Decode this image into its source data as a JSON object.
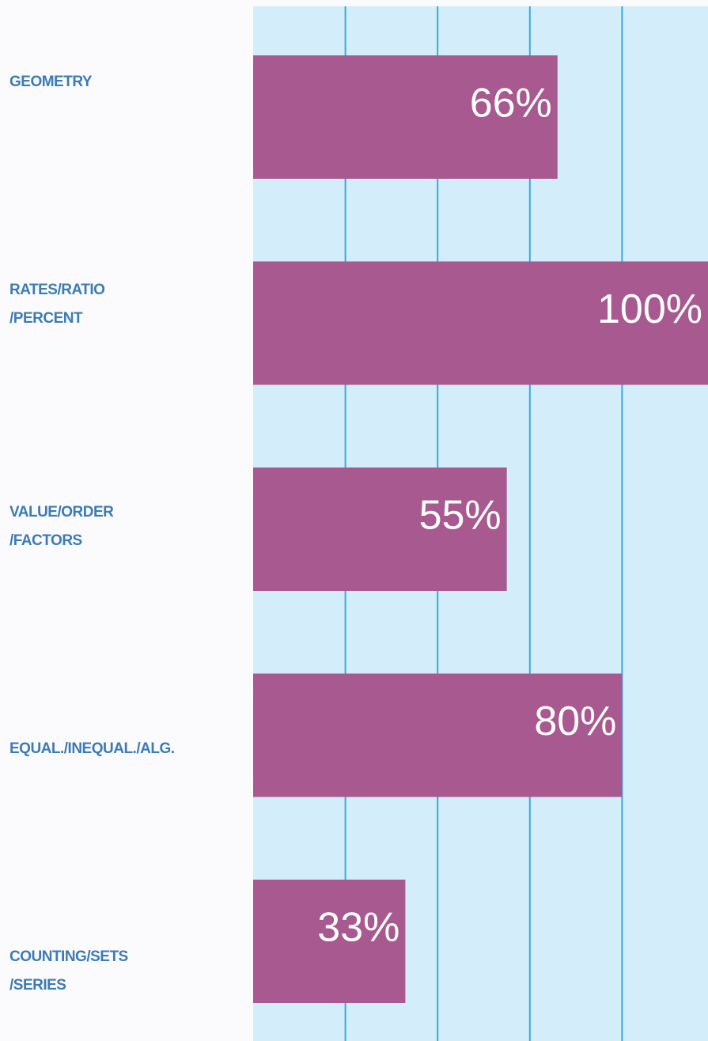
{
  "chart_data": {
    "type": "bar",
    "orientation": "horizontal",
    "categories": [
      [
        "GEOMETRY"
      ],
      [
        "RATES/RATIO",
        "/PERCENT"
      ],
      [
        "VALUE/ORDER",
        "/FACTORS"
      ],
      [
        "EQUAL./INEQUAL./ALG."
      ],
      [
        "COUNTING/SETS",
        "/SERIES"
      ]
    ],
    "values": [
      66,
      100,
      55,
      80,
      33
    ],
    "value_labels": [
      "66%",
      "100%",
      "55%",
      "80%",
      "33%"
    ],
    "color": "#a8598f",
    "xlim": [
      0,
      100
    ],
    "xticks": [
      20,
      40,
      60,
      80
    ],
    "grid": true
  }
}
